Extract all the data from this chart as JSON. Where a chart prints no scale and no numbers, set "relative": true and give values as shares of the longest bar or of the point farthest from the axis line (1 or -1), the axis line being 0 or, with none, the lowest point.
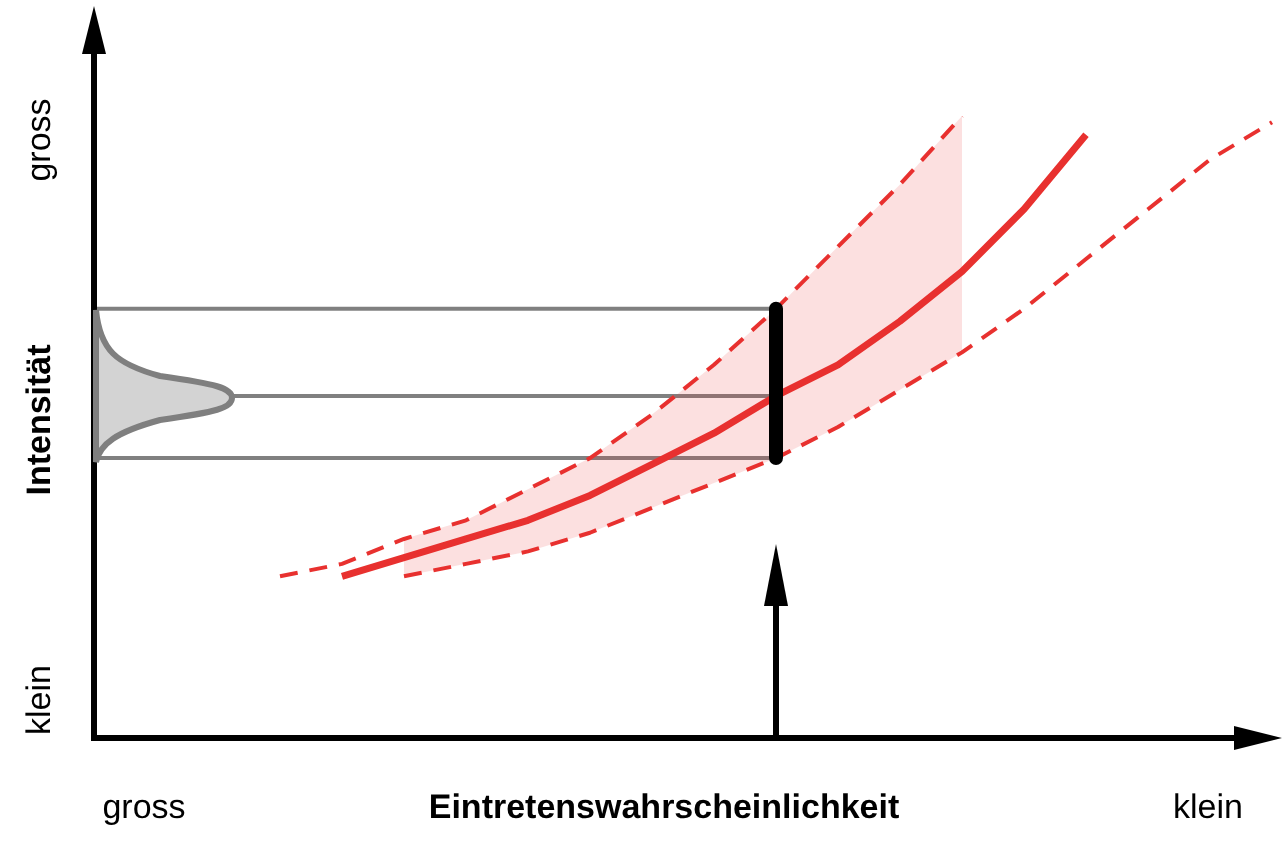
{
  "chart_data": {
    "type": "line",
    "relative": true,
    "grid": false,
    "legend": false,
    "xlabel": "Eintretenswahrscheinlichkeit",
    "ylabel": "Intensität",
    "annotations": [
      "gross",
      "klein",
      "gross",
      "klein"
    ],
    "categories": [
      null,
      null,
      null,
      null,
      null,
      null,
      null,
      null,
      null,
      null,
      null,
      null,
      null,
      null,
      null,
      null,
      null,
      null,
      null,
      null
    ],
    "series": [
      {
        "color": "#e8312f",
        "line_style": "solid",
        "values": [
          null,
          null,
          null,
          null,
          0.26,
          0.29,
          0.32,
          0.35,
          0.39,
          0.44,
          0.49,
          0.55,
          0.6,
          0.67,
          0.75,
          0.85,
          0.97,
          null,
          null,
          null
        ],
        "upper": [
          null,
          null,
          null,
          null,
          null,
          0.32,
          0.35,
          0.4,
          0.45,
          0.52,
          0.6,
          0.69,
          0.79,
          0.89,
          1.0,
          null,
          null,
          null,
          null,
          null
        ],
        "lower": [
          null,
          null,
          null,
          null,
          null,
          0.26,
          0.28,
          0.3,
          0.33,
          0.37,
          0.41,
          0.45,
          0.5,
          0.56,
          0.62,
          null,
          null,
          null,
          null,
          null
        ]
      },
      {
        "color": "#e8312f",
        "line_style": "dashed",
        "values": [
          null,
          null,
          null,
          0.26,
          0.28,
          0.32,
          0.35,
          0.4,
          0.45,
          0.52,
          0.6,
          0.69,
          0.79,
          0.89,
          1.0,
          null,
          null,
          null,
          null,
          null
        ]
      },
      {
        "color": "#e8312f",
        "line_style": "dashed",
        "values": [
          null,
          null,
          null,
          null,
          null,
          0.26,
          0.28,
          0.3,
          0.33,
          0.37,
          0.41,
          0.45,
          0.5,
          0.56,
          0.62,
          0.69,
          0.77,
          0.85,
          0.93,
          0.99
        ]
      }
    ],
    "ref_lines": [
      {
        "axis": "y",
        "value": 0.69,
        "color": "#808080"
      },
      {
        "axis": "y",
        "value": 0.55,
        "color": "#808080"
      },
      {
        "axis": "y",
        "value": 0.45,
        "color": "#808080"
      }
    ]
  }
}
